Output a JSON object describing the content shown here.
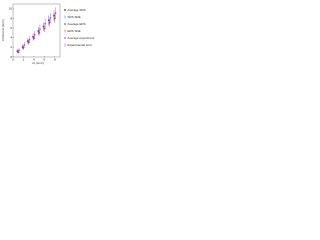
{
  "chart_data": {
    "type": "scatter",
    "x_label": "σt (mm²)",
    "y_label": "Critical σt (mm²)",
    "x": [
      1,
      2,
      3,
      4,
      5,
      6,
      7,
      8
    ],
    "series": [
      {
        "name": "Average SDS",
        "color": "#1f4fd6",
        "marker": "square",
        "values": [
          1.2,
          2.1,
          3.3,
          4.2,
          5.4,
          6.3,
          7.6,
          8.6
        ],
        "error_name": "SDS SDE",
        "errors": [
          0.4,
          0.5,
          0.6,
          0.7,
          0.8,
          0.9,
          1.0,
          1.1
        ]
      },
      {
        "name": "Average EDS",
        "color": "#e02020",
        "marker": "diamond",
        "values": [
          1.0,
          1.9,
          3.0,
          3.9,
          5.0,
          5.9,
          7.1,
          8.0
        ],
        "error_name": "EDS SDE",
        "errors": [
          0.3,
          0.4,
          0.5,
          0.5,
          0.6,
          0.7,
          0.8,
          0.9
        ]
      },
      {
        "name": "Average experiment",
        "color": "#cc22cc",
        "marker": "circle",
        "values": [
          1.4,
          2.5,
          3.6,
          4.6,
          5.8,
          6.9,
          8.1,
          9.1
        ],
        "error_name": "Experimental error",
        "errors": [
          0.5,
          0.6,
          0.7,
          0.8,
          0.9,
          1.0,
          1.1,
          1.2
        ]
      }
    ],
    "xlim": [
      0,
      9
    ],
    "ylim": [
      0,
      11
    ],
    "xticks": [
      0,
      2,
      4,
      6,
      8
    ],
    "yticks": [
      0,
      2,
      4,
      6,
      8,
      10
    ]
  }
}
